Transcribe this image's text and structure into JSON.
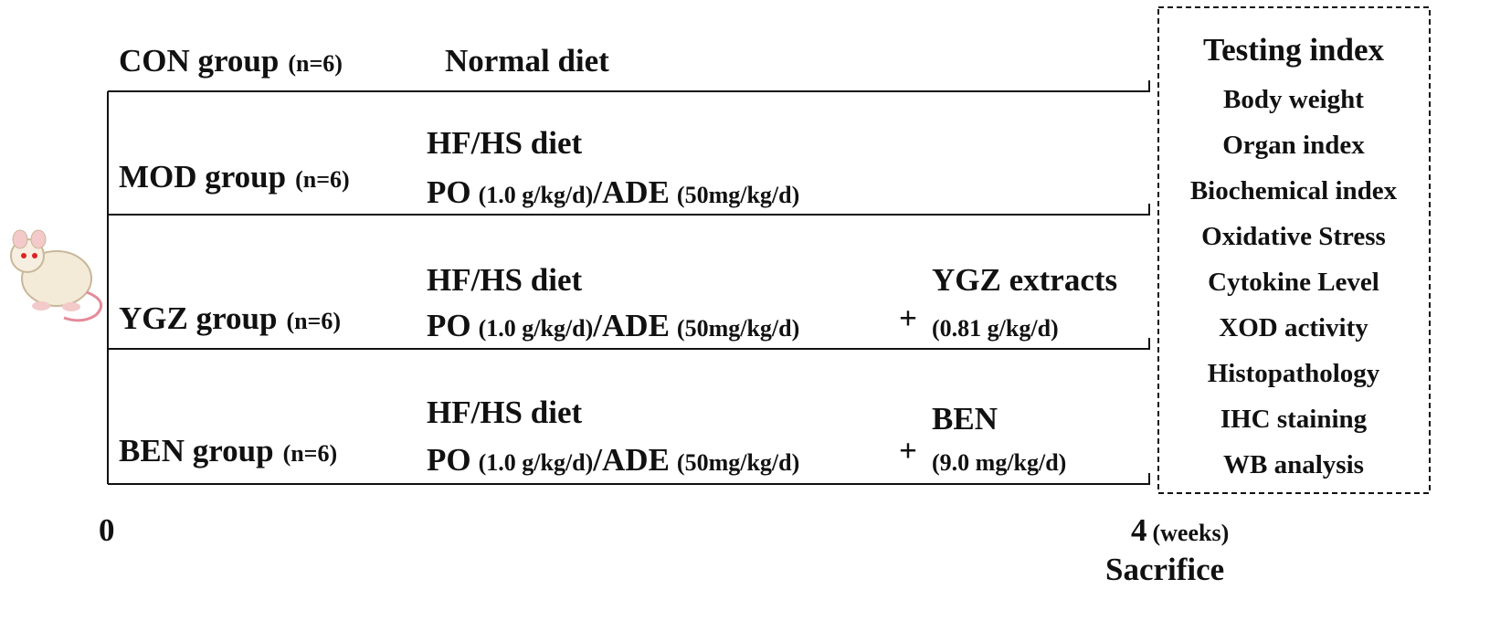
{
  "groups": [
    {
      "name": "CON group",
      "n": "(n=6)",
      "diet": "Normal diet"
    },
    {
      "name": "MOD group",
      "n": "(n=6)",
      "diet": "HF/HS diet",
      "regimen": [
        "PO",
        "(1.0 g/kg/d)",
        "/ADE",
        "(50mg/kg/d)"
      ]
    },
    {
      "name": "YGZ group",
      "n": "(n=6)",
      "diet": "HF/HS diet",
      "regimen": [
        "PO",
        "(1.0 g/kg/d)",
        "/ADE",
        "(50mg/kg/d)"
      ],
      "treatment": {
        "symbol": "+",
        "name": "YGZ extracts",
        "dose": "(0.81 g/kg/d)"
      }
    },
    {
      "name": "BEN group",
      "n": "(n=6)",
      "diet": "HF/HS diet",
      "regimen": [
        "PO",
        "(1.0 g/kg/d)",
        "/ADE",
        "(50mg/kg/d)"
      ],
      "treatment": {
        "symbol": "+",
        "name": "BEN",
        "dose": "(9.0 mg/kg/d)"
      }
    }
  ],
  "timeline": {
    "start": "0",
    "end": "4",
    "unit": "(weeks)",
    "end_label": "Sacrifice"
  },
  "testing": {
    "title": "Testing index",
    "items": [
      "Body weight",
      "Organ index",
      "Biochemical index",
      "Oxidative Stress",
      "Cytokine Level",
      "XOD activity",
      "Histopathology",
      "IHC staining",
      "WB analysis"
    ]
  }
}
